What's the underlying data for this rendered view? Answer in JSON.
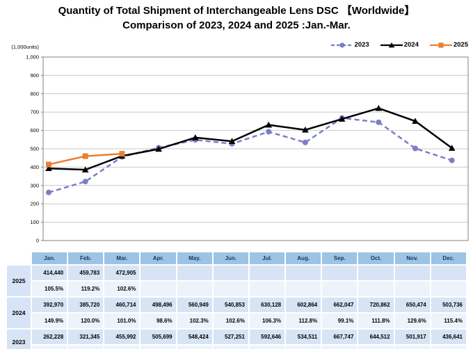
{
  "title": {
    "line1": "Quantity of Total Shipment of Interchangeable Lens DSC 【Worldwide】",
    "line2": "Comparison of 2023, 2024 and 2025 :Jan.-Mar."
  },
  "chart_data": {
    "type": "line",
    "units_label": "(1,000units)",
    "categories": [
      "Jan.",
      "Feb.",
      "Mar.",
      "Apr.",
      "May.",
      "Jun.",
      "Jul.",
      "Aug.",
      "Sep.",
      "Oct.",
      "Nov.",
      "Dec."
    ],
    "ylim": [
      0,
      1000
    ],
    "ytick_step": 100,
    "grid": true,
    "legend_position": "top-right",
    "series": [
      {
        "name": "2023",
        "color": "#7B7EC8",
        "marker": "circle",
        "dash": true,
        "values": [
          262.228,
          321.345,
          455.992,
          505.699,
          548.424,
          527.251,
          592.646,
          534.511,
          667.747,
          644.512,
          501.917,
          436.641
        ]
      },
      {
        "name": "2024",
        "color": "#000000",
        "marker": "triangle",
        "dash": false,
        "values": [
          392.97,
          385.72,
          460.714,
          498.496,
          560.949,
          540.853,
          630.128,
          602.864,
          662.047,
          720.862,
          650.474,
          503.736
        ]
      },
      {
        "name": "2025",
        "color": "#ED7D31",
        "marker": "square",
        "dash": false,
        "values": [
          414.44,
          459.783,
          472.905
        ]
      }
    ]
  },
  "table": {
    "columns": [
      "Jan.",
      "Feb.",
      "Mar.",
      "Apr.",
      "May.",
      "Jun.",
      "Jul.",
      "Aug.",
      "Sep.",
      "Oct.",
      "Nov.",
      "Dec."
    ],
    "groups": [
      {
        "year": "2025",
        "shipments": [
          "414,440",
          "459,783",
          "472,905",
          "",
          "",
          "",
          "",
          "",
          "",
          "",
          "",
          ""
        ],
        "yoy": [
          "105.5%",
          "119.2%",
          "102.6%",
          "",
          "",
          "",
          "",
          "",
          "",
          "",
          "",
          ""
        ]
      },
      {
        "year": "2024",
        "shipments": [
          "392,970",
          "385,720",
          "460,714",
          "498,496",
          "560,949",
          "540,853",
          "630,128",
          "602,864",
          "662,047",
          "720,862",
          "650,474",
          "503,736"
        ],
        "yoy": [
          "149.9%",
          "120.0%",
          "101.0%",
          "98.6%",
          "102.3%",
          "102.6%",
          "106.3%",
          "112.8%",
          "99.1%",
          "111.8%",
          "129.6%",
          "115.4%"
        ]
      },
      {
        "year": "2023",
        "shipments": [
          "262,228",
          "321,345",
          "455,992",
          "505,699",
          "548,424",
          "527,251",
          "592,646",
          "534,511",
          "667,747",
          "644,512",
          "501,917",
          "436,641"
        ],
        "yoy": [
          "",
          "",
          "",
          "",
          "",
          "",
          "",
          "",
          "",
          "",
          "",
          ""
        ]
      }
    ]
  },
  "colors": {
    "grid": "#C9C9C9",
    "axis": "#808080",
    "table_header_bg": "#9DC3E6",
    "table_header_text": "#17375E",
    "table_value_bg": "#D7E4F5",
    "table_yoy_bg": "#EDF3FA"
  }
}
